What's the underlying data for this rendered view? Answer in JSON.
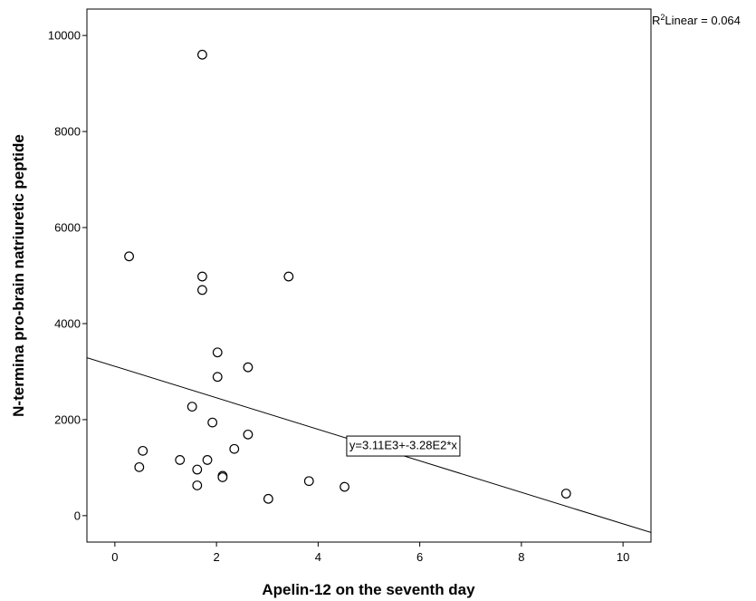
{
  "chart_data": {
    "type": "scatter",
    "xlabel": "Apelin-12 on the seventh day",
    "ylabel": "N-termina pro-brain natriuretic peptide",
    "xlim": [
      -0.55,
      10.55
    ],
    "ylim": [
      -550,
      10550
    ],
    "x_ticks": [
      "0",
      "2",
      "4",
      "6",
      "8",
      "10"
    ],
    "y_ticks": [
      "0",
      "2000",
      "4000",
      "6000",
      "8000",
      "10000"
    ],
    "x_tick_values": [
      0,
      2,
      4,
      6,
      8,
      10
    ],
    "y_tick_values": [
      0,
      2000,
      4000,
      6000,
      8000,
      10000
    ],
    "points": [
      {
        "x": 1.72,
        "y": 9600
      },
      {
        "x": 0.28,
        "y": 5400
      },
      {
        "x": 1.72,
        "y": 4980
      },
      {
        "x": 3.42,
        "y": 4980
      },
      {
        "x": 1.72,
        "y": 4700
      },
      {
        "x": 2.02,
        "y": 3400
      },
      {
        "x": 2.62,
        "y": 3090
      },
      {
        "x": 2.02,
        "y": 2890
      },
      {
        "x": 1.52,
        "y": 2270
      },
      {
        "x": 1.92,
        "y": 1940
      },
      {
        "x": 2.62,
        "y": 1690
      },
      {
        "x": 2.35,
        "y": 1390
      },
      {
        "x": 0.55,
        "y": 1350
      },
      {
        "x": 1.28,
        "y": 1160
      },
      {
        "x": 1.82,
        "y": 1160
      },
      {
        "x": 0.48,
        "y": 1010
      },
      {
        "x": 1.62,
        "y": 960
      },
      {
        "x": 2.12,
        "y": 830
      },
      {
        "x": 2.12,
        "y": 800
      },
      {
        "x": 3.82,
        "y": 720
      },
      {
        "x": 1.62,
        "y": 630
      },
      {
        "x": 4.52,
        "y": 600
      },
      {
        "x": 8.88,
        "y": 460
      },
      {
        "x": 3.02,
        "y": 350
      }
    ],
    "fit_line": {
      "intercept": 3110,
      "slope": -328
    },
    "fit_equation": "y=3.11E3+-3.28E2*x",
    "fit_label_anchor": {
      "x": 4.58,
      "y": 1450
    },
    "r2_label": "Linear = 0.064",
    "grid": false,
    "marker": "hollow-circle"
  }
}
